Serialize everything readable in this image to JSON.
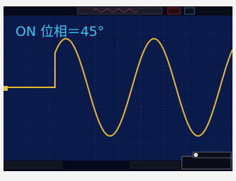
{
  "header": {
    "title": "ON 位相＝45°"
  }
}
